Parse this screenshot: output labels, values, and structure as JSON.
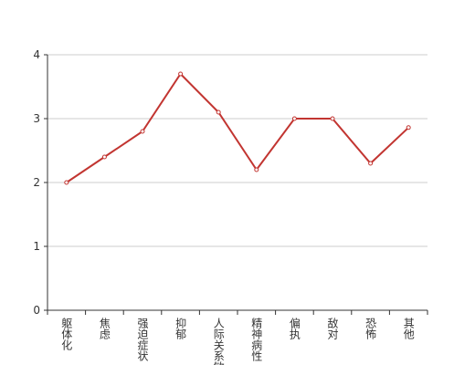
{
  "chart_data": {
    "type": "line",
    "categories": [
      "躯体化",
      "焦虑",
      "强迫症状",
      "抑郁",
      "人际关系敏感",
      "精神病性",
      "偏执",
      "敌对",
      "恐怖",
      "其他"
    ],
    "series": [
      {
        "color": "#c23531",
        "values": [
          2.0,
          2.4,
          2.8,
          3.7,
          3.1,
          2.2,
          3.0,
          3.0,
          2.3,
          2.86
        ]
      }
    ],
    "ylim": [
      0,
      4
    ],
    "yticks": [
      0,
      1,
      2,
      3,
      4
    ],
    "grid": true
  }
}
